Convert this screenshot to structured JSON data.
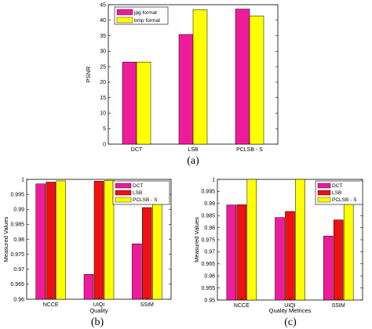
{
  "colors": {
    "magenta": "#ee1c9a",
    "red": "#ee1111",
    "yellow": "#ffff00"
  },
  "chart_data": [
    {
      "type": "bar",
      "caption": "(a)",
      "ylabel": "PSNR",
      "xlabel": "",
      "ylim": [
        0,
        45
      ],
      "yticks": [
        "0",
        "5",
        "10",
        "15",
        "20",
        "25",
        "30",
        "35",
        "40",
        "45"
      ],
      "categories": [
        "DCT",
        "LSB",
        "PCLSB - S"
      ],
      "series": [
        {
          "name": "jpg format",
          "color": "#ee1c9a",
          "values": [
            26.5,
            35.4,
            43.6
          ]
        },
        {
          "name": "bmp format",
          "color": "#ffff00",
          "values": [
            26.5,
            43.4,
            41.4
          ]
        }
      ],
      "legend": "top-left"
    },
    {
      "type": "bar",
      "caption": "(b)",
      "ylabel": "Measured Values",
      "xlabel": "Quality",
      "ylim": [
        0.96,
        1.0
      ],
      "yticks": [
        "0.96",
        "0.965",
        "0.97",
        "0.975",
        "0.98",
        "0.985",
        "0.99",
        "0.995",
        "1"
      ],
      "categories": [
        "NCCE",
        "UIQI",
        "SSIM"
      ],
      "series": [
        {
          "name": "DCT",
          "color": "#ee1c9a",
          "values": [
            0.9985,
            0.9683,
            0.9785
          ]
        },
        {
          "name": "LSB",
          "color": "#ee1111",
          "values": [
            0.9991,
            0.9994,
            0.9906
          ]
        },
        {
          "name": "PCLSB - S",
          "color": "#ffff00",
          "values": [
            0.9995,
            0.9996,
            0.9937
          ]
        }
      ],
      "legend": "top-right"
    },
    {
      "type": "bar",
      "caption": "(c)",
      "ylabel": "Measured Values",
      "xlabel": "Quality Metrices",
      "ylim": [
        0.95,
        1.0
      ],
      "yticks": [
        "0.95",
        "0.955",
        "0.96",
        "0.965",
        "0.97",
        "0.975",
        "0.98",
        "0.985",
        "0.99",
        "0.995",
        "1"
      ],
      "categories": [
        "NCCE",
        "UIQI",
        "SSIM"
      ],
      "series": [
        {
          "name": "DCT",
          "color": "#ee1c9a",
          "values": [
            0.9894,
            0.9842,
            0.9765
          ]
        },
        {
          "name": "LSB",
          "color": "#ee1111",
          "values": [
            0.9895,
            0.9867,
            0.9832
          ]
        },
        {
          "name": "PCLSB - S",
          "color": "#ffff00",
          "values": [
            1.0,
            1.0,
            0.9925
          ]
        }
      ],
      "legend": "top-right"
    }
  ]
}
